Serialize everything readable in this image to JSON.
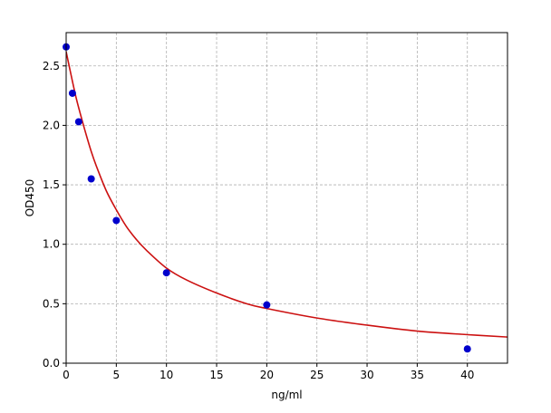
{
  "chart_data": {
    "type": "scatter",
    "title": "",
    "xlabel": "ng/ml",
    "ylabel": "OD450",
    "xlim": [
      0,
      44
    ],
    "ylim": [
      0,
      2.78
    ],
    "xticks": [
      0,
      5,
      10,
      15,
      20,
      25,
      30,
      35,
      40
    ],
    "xtick_labels": [
      "0",
      "5",
      "10",
      "15",
      "20",
      "25",
      "30",
      "35",
      "40"
    ],
    "yticks": [
      0.0,
      0.5,
      1.0,
      1.5,
      2.0,
      2.5
    ],
    "ytick_labels": [
      "0.0",
      "0.5",
      "1.0",
      "1.5",
      "2.0",
      "2.5"
    ],
    "grid": true,
    "grid_style": "dashed",
    "series": [
      {
        "kind": "points",
        "color": "#0000cc",
        "x": [
          0,
          0.625,
          1.25,
          2.5,
          5,
          10,
          20,
          40
        ],
        "y": [
          2.66,
          2.27,
          2.03,
          1.55,
          1.2,
          0.76,
          0.49,
          0.12
        ]
      },
      {
        "kind": "fit-curve",
        "color": "#cc1111",
        "x": [
          0,
          0.5,
          1,
          1.5,
          2,
          2.5,
          3,
          4,
          5,
          6,
          7,
          8,
          10,
          12,
          15,
          18,
          20,
          25,
          30,
          35,
          40,
          44
        ],
        "y": [
          2.62,
          2.42,
          2.23,
          2.07,
          1.92,
          1.78,
          1.66,
          1.45,
          1.29,
          1.15,
          1.04,
          0.95,
          0.8,
          0.7,
          0.59,
          0.5,
          0.46,
          0.38,
          0.32,
          0.27,
          0.24,
          0.22
        ]
      }
    ]
  }
}
